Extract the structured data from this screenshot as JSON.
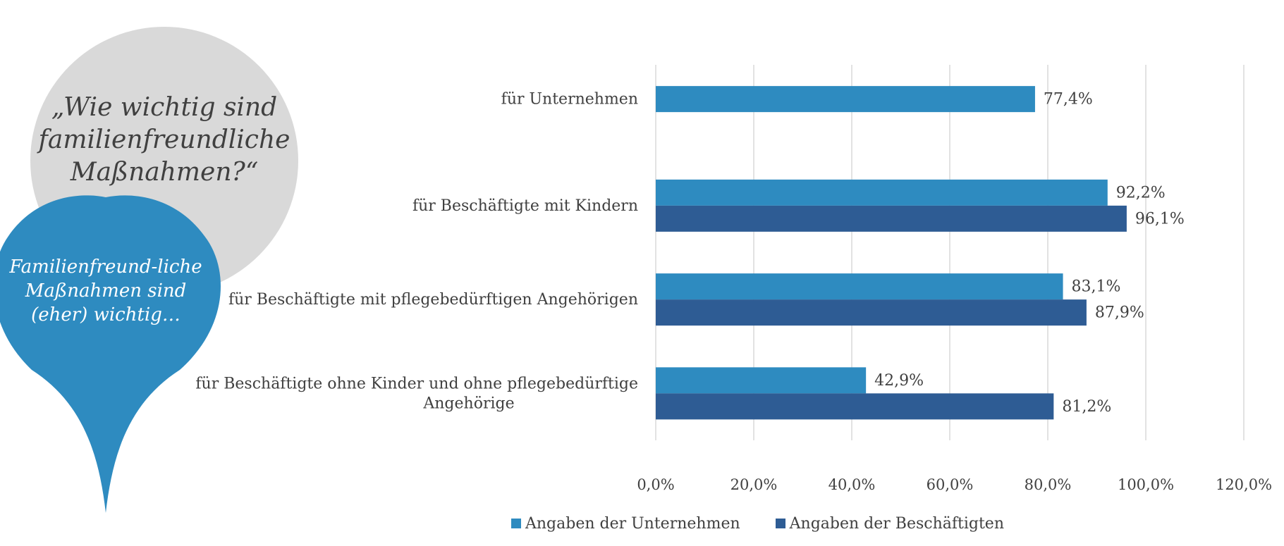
{
  "question": "„Wie wichtig sind familienfreundliche Maßnahmen?“",
  "pin_text": "Familienfreund-liche Maßnahmen sind (eher) wichtig…",
  "colors": {
    "bubble_gray": "#d9d9d9",
    "pin_blue": "#2e8bc0",
    "series_unternehmen": "#2e8bc0",
    "series_beschaeftigte": "#2e5c94",
    "gridline": "#d9d9d9",
    "text": "#404040"
  },
  "chart_data": {
    "type": "bar",
    "orientation": "horizontal",
    "categories": [
      "für Unternehmen",
      "für Beschäftigte mit Kindern",
      "für Beschäftigte mit pflegebedürftigen Angehörigen",
      "für Beschäftigte ohne Kinder und ohne pflegebedürftige Angehörige"
    ],
    "category_lines": [
      [
        "für Unternehmen"
      ],
      [
        "für Beschäftigte mit Kindern"
      ],
      [
        "für Beschäftigte mit pflegebedürftigen Angehörigen"
      ],
      [
        "für Beschäftigte ohne Kinder und ohne pflegebedürftige",
        "Angehörige"
      ]
    ],
    "series": [
      {
        "name": "Angaben der Unternehmen",
        "values": [
          77.4,
          92.2,
          83.1,
          42.9
        ],
        "labels": [
          "77,4%",
          "92,2%",
          "83,1%",
          "42,9%"
        ]
      },
      {
        "name": "Angaben der Beschäftigten",
        "values": [
          null,
          96.1,
          87.9,
          81.2
        ],
        "labels": [
          "",
          "96,1%",
          "87,9%",
          "81,2%"
        ]
      }
    ],
    "xlim": [
      0,
      120
    ],
    "ticks": [
      0,
      20,
      40,
      60,
      80,
      100,
      120
    ],
    "tick_labels": [
      "0,0%",
      "20,0%",
      "40,0%",
      "60,0%",
      "80,0%",
      "100,0%",
      "120,0%"
    ],
    "grid": true,
    "legend_position": "bottom"
  }
}
